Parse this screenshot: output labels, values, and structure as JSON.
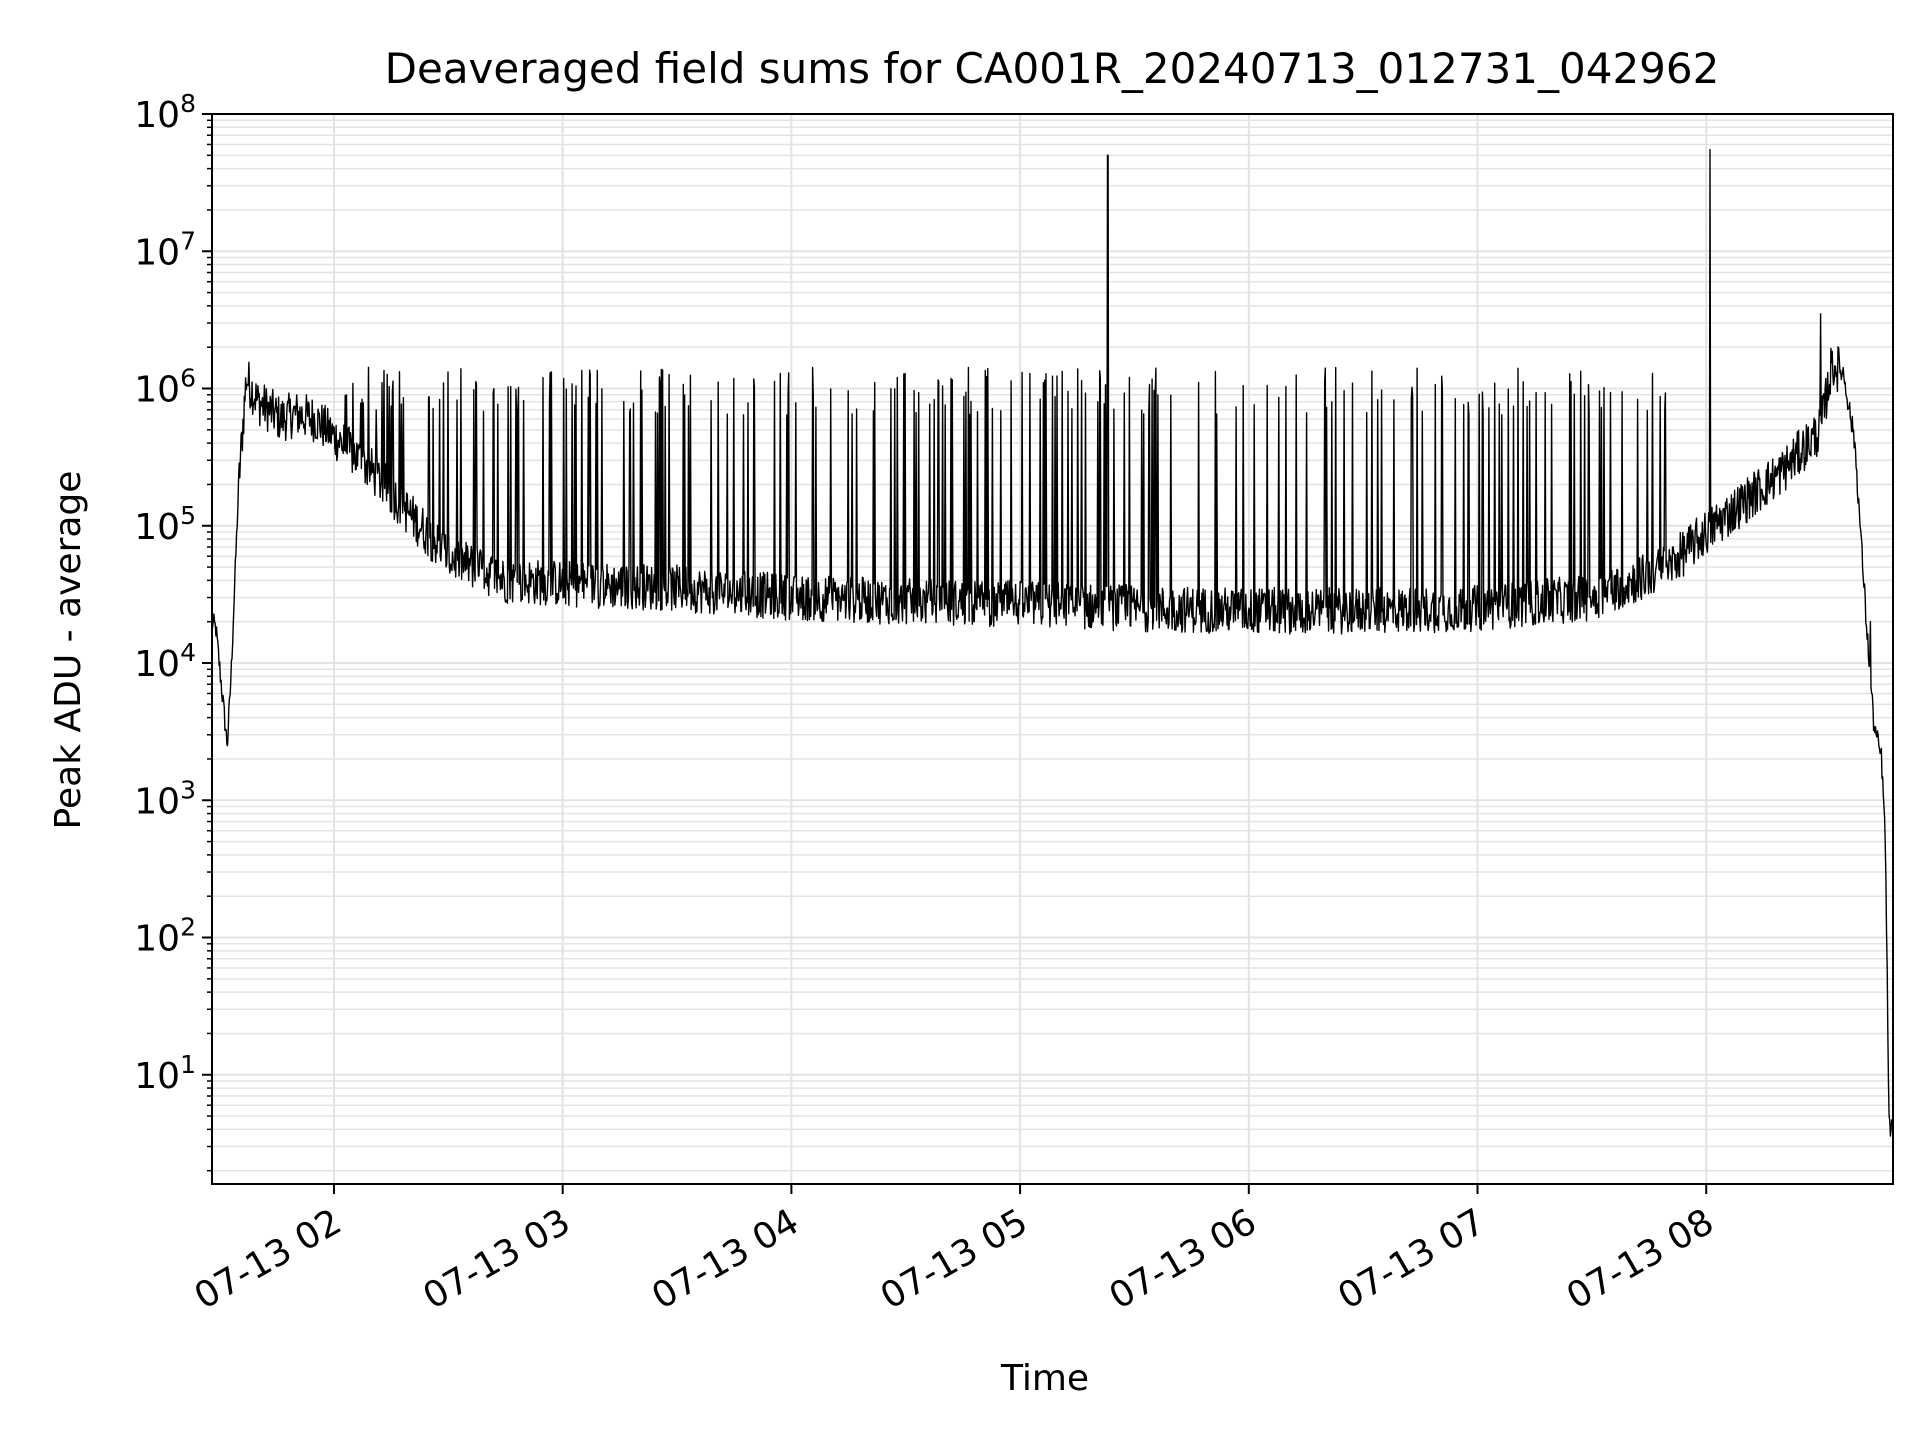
{
  "chart_data": {
    "type": "line",
    "title": "Deaveraged field sums for CA001R_20240713_012731_042962",
    "xlabel": "Time",
    "ylabel": "Peak ADU - average",
    "y_scale": "log",
    "grid": true,
    "grid_minor": true,
    "legend": "none",
    "line_color": "#000000",
    "grid_color": "#e3e3e3",
    "xlim": [
      "2024-07-13 01:28",
      "2024-07-13 08:49"
    ],
    "ylim": [
      1.6,
      100000000
    ],
    "x_ticks": [
      {
        "value": "2024-07-13 02:00",
        "label": "07-13 02"
      },
      {
        "value": "2024-07-13 03:00",
        "label": "07-13 03"
      },
      {
        "value": "2024-07-13 04:00",
        "label": "07-13 04"
      },
      {
        "value": "2024-07-13 05:00",
        "label": "07-13 05"
      },
      {
        "value": "2024-07-13 06:00",
        "label": "07-13 06"
      },
      {
        "value": "2024-07-13 07:00",
        "label": "07-13 07"
      },
      {
        "value": "2024-07-13 08:00",
        "label": "07-13 08"
      }
    ],
    "y_ticks": [
      {
        "value": 10,
        "base": "10",
        "exp": "1"
      },
      {
        "value": 100,
        "base": "10",
        "exp": "2"
      },
      {
        "value": 1000,
        "base": "10",
        "exp": "3"
      },
      {
        "value": 10000,
        "base": "10",
        "exp": "4"
      },
      {
        "value": 100000,
        "base": "10",
        "exp": "5"
      },
      {
        "value": 1000000,
        "base": "10",
        "exp": "6"
      },
      {
        "value": 10000000,
        "base": "10",
        "exp": "7"
      },
      {
        "value": 100000000,
        "base": "10",
        "exp": "8"
      }
    ],
    "series": [
      {
        "x": [
          "2024-07-13 01:28",
          "2024-07-13 01:29",
          "2024-07-13 01:32",
          "2024-07-13 01:33",
          "2024-07-13 01:35",
          "2024-07-13 01:37",
          "2024-07-13 01:40",
          "2024-07-13 01:43",
          "2024-07-13 01:46",
          "2024-07-13 01:50",
          "2024-07-13 01:55",
          "2024-07-13 02:00",
          "2024-07-13 02:10",
          "2024-07-13 02:20",
          "2024-07-13 02:30",
          "2024-07-13 02:45",
          "2024-07-13 03:00",
          "2024-07-13 03:30",
          "2024-07-13 04:00",
          "2024-07-13 04:30",
          "2024-07-13 05:00",
          "2024-07-13 05:30",
          "2024-07-13 06:00",
          "2024-07-13 06:30",
          "2024-07-13 07:00",
          "2024-07-13 07:30",
          "2024-07-13 07:50",
          "2024-07-13 08:00",
          "2024-07-13 08:10",
          "2024-07-13 08:20",
          "2024-07-13 08:30",
          "2024-07-13 08:33",
          "2024-07-13 08:36",
          "2024-07-13 08:39",
          "2024-07-13 08:42",
          "2024-07-13 08:44",
          "2024-07-13 08:46",
          "2024-07-13 08:47",
          "2024-07-13 08:48",
          "2024-07-13 08:49"
        ],
        "y": [
          20000,
          18000,
          2500,
          8000,
          200000,
          1200000,
          800000,
          700000,
          600000,
          650000,
          600000,
          450000,
          250000,
          120000,
          60000,
          40000,
          38000,
          35000,
          30000,
          28000,
          27000,
          25000,
          24000,
          24000,
          25000,
          30000,
          50000,
          90000,
          150000,
          250000,
          500000,
          1500000,
          1300000,
          400000,
          20000,
          3500,
          2000,
          500,
          4,
          4
        ],
        "spikes": [
          {
            "x": "2024-07-13 05:23",
            "y": 50000000
          },
          {
            "x": "2024-07-13 08:01",
            "y": 55000000
          },
          {
            "x": "2024-07-13 08:30",
            "y": 3500000
          },
          {
            "x": "2024-07-13 08:43",
            "y": 20000
          }
        ],
        "flare_peak": 1000000
      }
    ]
  }
}
